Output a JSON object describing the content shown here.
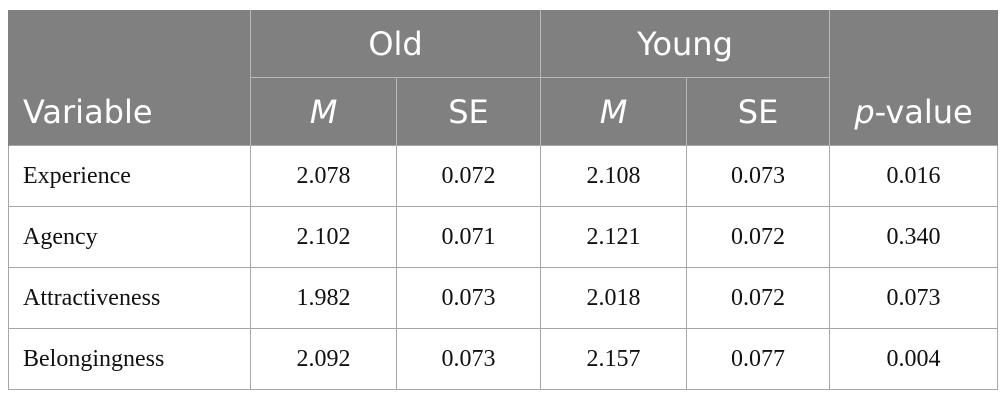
{
  "table": {
    "group_headers": [
      "Old",
      "Young"
    ],
    "variable_header": "Variable",
    "sub_headers": [
      "M",
      "SE",
      "M",
      "SE"
    ],
    "p_header": {
      "italic": "p",
      "text": "-value"
    },
    "rows": [
      [
        "Experience",
        "2.078",
        "0.072",
        "2.108",
        "0.073",
        "0.016"
      ],
      [
        "Agency",
        "2.102",
        "0.071",
        "2.121",
        "0.072",
        "0.340"
      ],
      [
        "Attractiveness",
        "1.982",
        "0.073",
        "2.018",
        "0.072",
        "0.073"
      ],
      [
        "Belongingness",
        "2.092",
        "0.073",
        "2.157",
        "0.077",
        "0.004"
      ]
    ]
  }
}
